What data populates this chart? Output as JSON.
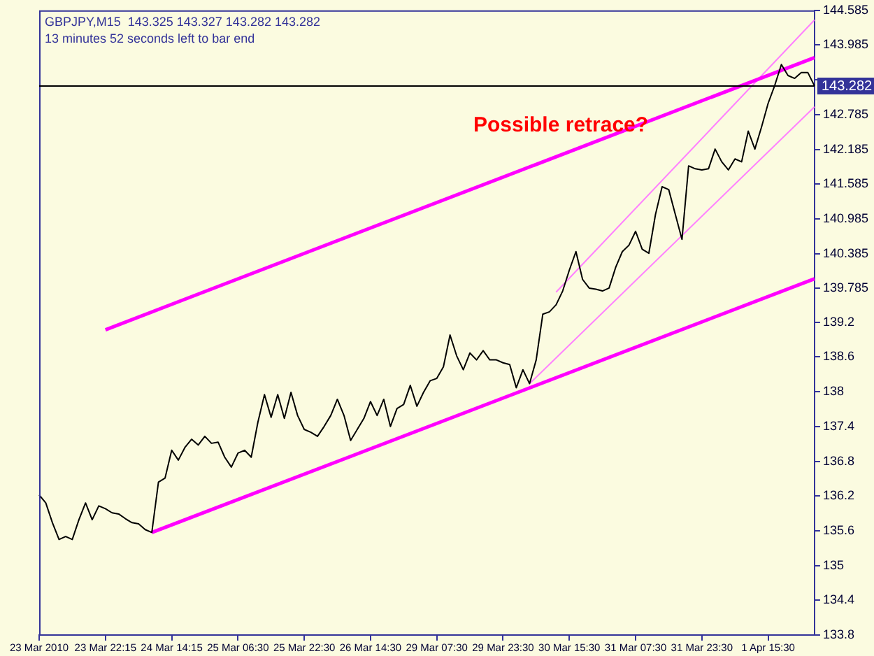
{
  "chart_data": {
    "type": "line",
    "title": "GBPJPY,M15  143.325 143.327 143.282 143.282",
    "subtitle": "13 minutes 52 seconds left to bar end",
    "annotations": [
      "Possible retrace?"
    ],
    "categories": [
      "23 Mar 2010",
      null,
      null,
      null,
      null,
      null,
      null,
      null,
      null,
      null,
      "23 Mar 22:15",
      null,
      null,
      null,
      null,
      null,
      null,
      null,
      null,
      null,
      "24 Mar 14:15",
      null,
      null,
      null,
      null,
      null,
      null,
      null,
      null,
      null,
      "25 Mar 06:30",
      null,
      null,
      null,
      null,
      null,
      null,
      null,
      null,
      null,
      "25 Mar 22:30",
      null,
      null,
      null,
      null,
      null,
      null,
      null,
      null,
      null,
      "26 Mar 14:30",
      null,
      null,
      null,
      null,
      null,
      null,
      null,
      null,
      null,
      "29 Mar 07:30",
      null,
      null,
      null,
      null,
      null,
      null,
      null,
      null,
      null,
      "29 Mar 23:30",
      null,
      null,
      null,
      null,
      null,
      null,
      null,
      null,
      null,
      "30 Mar 15:30",
      null,
      null,
      null,
      null,
      null,
      null,
      null,
      null,
      null,
      "31 Mar 07:30",
      null,
      null,
      null,
      null,
      null,
      null,
      null,
      null,
      null,
      "31 Mar 23:30",
      null,
      null,
      null,
      null,
      null,
      null,
      null,
      null,
      null,
      "1 Apr 15:30",
      null,
      null,
      null,
      null,
      null,
      null,
      null
    ],
    "series": [
      {
        "color": "#000000",
        "values": [
          136.22,
          136.08,
          135.74,
          135.45,
          135.5,
          135.45,
          135.79,
          136.08,
          135.79,
          136.03,
          135.98,
          135.91,
          135.89,
          135.81,
          135.74,
          135.72,
          135.62,
          135.57,
          136.44,
          136.51,
          136.99,
          136.82,
          137.04,
          137.18,
          137.08,
          137.23,
          137.11,
          137.13,
          136.87,
          136.7,
          136.94,
          136.99,
          136.87,
          137.47,
          137.95,
          137.56,
          137.95,
          137.54,
          137.99,
          137.59,
          137.35,
          137.3,
          137.23,
          137.4,
          137.59,
          137.87,
          137.59,
          137.16,
          137.35,
          137.54,
          137.83,
          137.59,
          137.87,
          137.4,
          137.71,
          137.78,
          138.11,
          137.75,
          137.99,
          138.19,
          138.23,
          138.43,
          138.98,
          138.62,
          138.38,
          138.67,
          138.55,
          138.71,
          138.55,
          138.55,
          138.5,
          138.47,
          138.07,
          138.38,
          138.14,
          138.55,
          139.34,
          139.38,
          139.5,
          139.74,
          140.1,
          140.42,
          139.94,
          139.79,
          139.77,
          139.74,
          139.79,
          140.15,
          140.42,
          140.53,
          140.77,
          140.46,
          140.39,
          141.06,
          141.54,
          141.49,
          141.06,
          140.63,
          141.9,
          141.85,
          141.83,
          141.85,
          142.19,
          141.97,
          141.83,
          142.02,
          141.97,
          142.5,
          142.19,
          142.57,
          142.98,
          143.29,
          143.65,
          143.46,
          143.41,
          143.51,
          143.51,
          143.28
        ]
      },
      {
        "color": "#ff00ff",
        "values": [
          null,
          null,
          null,
          null,
          null,
          null,
          null,
          null,
          null,
          null,
          139.07,
          null,
          null,
          null,
          null,
          null,
          null,
          null,
          null,
          null,
          null,
          null,
          null,
          null,
          null,
          null,
          null,
          null,
          null,
          null,
          null,
          null,
          null,
          null,
          null,
          null,
          null,
          null,
          null,
          null,
          null,
          null,
          null,
          null,
          null,
          null,
          null,
          null,
          null,
          null,
          null,
          null,
          null,
          null,
          null,
          null,
          null,
          null,
          null,
          null,
          null,
          null,
          null,
          null,
          null,
          null,
          null,
          null,
          null,
          null,
          null,
          null,
          null,
          null,
          null,
          null,
          null,
          null,
          null,
          null,
          null,
          null,
          null,
          null,
          null,
          null,
          null,
          null,
          null,
          null,
          null,
          null,
          null,
          null,
          null,
          null,
          null,
          null,
          null,
          null,
          null,
          null,
          null,
          null,
          null,
          null,
          null,
          null,
          null,
          null,
          null,
          null,
          null,
          null,
          null,
          null,
          null,
          143.77
        ]
      },
      {
        "color": "#ff00ff",
        "values": [
          null,
          null,
          null,
          null,
          null,
          null,
          null,
          null,
          null,
          null,
          null,
          null,
          null,
          null,
          null,
          null,
          null,
          135.57,
          null,
          null,
          null,
          null,
          null,
          null,
          null,
          null,
          null,
          null,
          null,
          null,
          null,
          null,
          null,
          null,
          null,
          null,
          null,
          null,
          null,
          null,
          null,
          null,
          null,
          null,
          null,
          null,
          null,
          null,
          null,
          null,
          null,
          null,
          null,
          null,
          null,
          null,
          null,
          null,
          null,
          null,
          null,
          null,
          null,
          null,
          null,
          null,
          null,
          null,
          null,
          null,
          null,
          null,
          null,
          null,
          null,
          null,
          null,
          null,
          null,
          null,
          null,
          null,
          null,
          null,
          null,
          null,
          null,
          null,
          null,
          null,
          null,
          null,
          null,
          null,
          null,
          null,
          null,
          null,
          null,
          null,
          null,
          null,
          null,
          null,
          null,
          null,
          null,
          null,
          null,
          null,
          null,
          null,
          null,
          null,
          null,
          null,
          null,
          139.95
        ]
      },
      {
        "color": "#ff80ff",
        "values": [
          null,
          null,
          null,
          null,
          null,
          null,
          null,
          null,
          null,
          null,
          null,
          null,
          null,
          null,
          null,
          null,
          null,
          null,
          null,
          null,
          null,
          null,
          null,
          null,
          null,
          null,
          null,
          null,
          null,
          null,
          null,
          null,
          null,
          null,
          null,
          null,
          null,
          null,
          null,
          null,
          null,
          null,
          null,
          null,
          null,
          null,
          null,
          null,
          null,
          null,
          null,
          null,
          null,
          null,
          null,
          null,
          null,
          null,
          null,
          null,
          null,
          null,
          null,
          null,
          null,
          null,
          null,
          null,
          null,
          null,
          null,
          null,
          null,
          null,
          138.14,
          null,
          null,
          null,
          null,
          null,
          null,
          null,
          null,
          null,
          null,
          null,
          null,
          null,
          null,
          null,
          null,
          null,
          null,
          null,
          null,
          null,
          null,
          null,
          null,
          null,
          null,
          null,
          null,
          null,
          null,
          null,
          null,
          null,
          null,
          null,
          null,
          null,
          null,
          null,
          null,
          null,
          null,
          142.92
        ]
      },
      {
        "color": "#ff80ff",
        "values": [
          null,
          null,
          null,
          null,
          null,
          null,
          null,
          null,
          null,
          null,
          null,
          null,
          null,
          null,
          null,
          null,
          null,
          null,
          null,
          null,
          null,
          null,
          null,
          null,
          null,
          null,
          null,
          null,
          null,
          null,
          null,
          null,
          null,
          null,
          null,
          null,
          null,
          null,
          null,
          null,
          null,
          null,
          null,
          null,
          null,
          null,
          null,
          null,
          null,
          null,
          null,
          null,
          null,
          null,
          null,
          null,
          null,
          null,
          null,
          null,
          null,
          null,
          null,
          null,
          null,
          null,
          null,
          null,
          null,
          null,
          null,
          null,
          null,
          null,
          null,
          null,
          null,
          null,
          139.72,
          null,
          null,
          null,
          null,
          null,
          null,
          null,
          null,
          null,
          null,
          null,
          null,
          null,
          null,
          null,
          null,
          null,
          null,
          null,
          null,
          null,
          null,
          null,
          null,
          null,
          null,
          null,
          null,
          null,
          null,
          null,
          null,
          null,
          null,
          null,
          null,
          null,
          null,
          144.42
        ]
      }
    ],
    "ylim": [
      133.8,
      144.585
    ],
    "yticks": [
      144.585,
      143.985,
      {
        "value": 143.385,
        "label": null
      },
      142.785,
      142.185,
      141.585,
      140.985,
      140.385,
      139.785,
      139.2,
      138.6,
      138,
      137.4,
      136.8,
      136.2,
      135.6,
      135,
      134.4,
      133.8
    ],
    "ref_lines": [
      {
        "axis": "y",
        "value": 143.282,
        "label": "143.282",
        "color": "#000000"
      }
    ],
    "grid": false,
    "legend": false
  }
}
